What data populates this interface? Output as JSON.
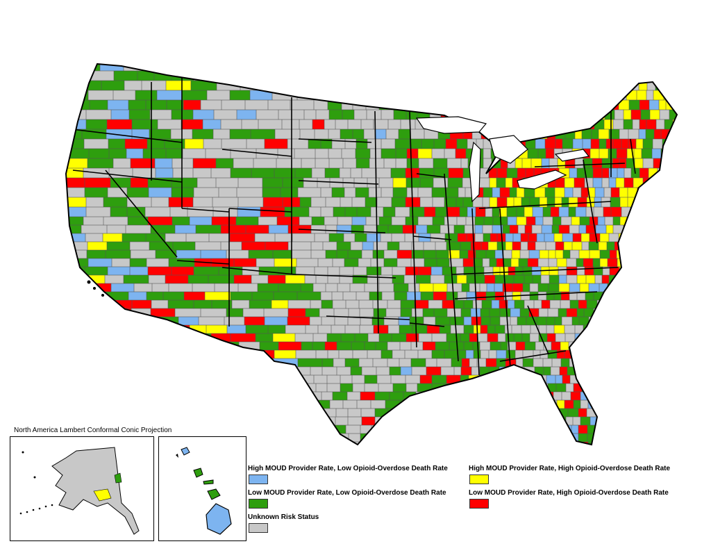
{
  "projection_label": "North America Lambert Conformal Conic Projection",
  "legend": [
    {
      "label": "High MOUD Provider Rate, Low Opioid-Overdose Death Rate",
      "color": "#7db4f0"
    },
    {
      "label": "High MOUD Provider Rate, High Opioid-Overdose Death Rate",
      "color": "#ffff00"
    },
    {
      "label": "Low MOUD Provider Rate, Low Opioid-Overdose Death Rate",
      "color": "#2e9e0e"
    },
    {
      "label": "Low MOUD Provider Rate, High Opioid-Overdose Death Rate",
      "color": "#ff0000"
    },
    {
      "label": "Unknown Risk Status",
      "color": "#c8c8c8"
    }
  ],
  "colors": {
    "unknown": "#c8c8c8",
    "high_low": "#7db4f0",
    "high_high": "#ffff00",
    "low_low": "#2e9e0e",
    "low_high": "#ff0000",
    "border": "#000000"
  }
}
